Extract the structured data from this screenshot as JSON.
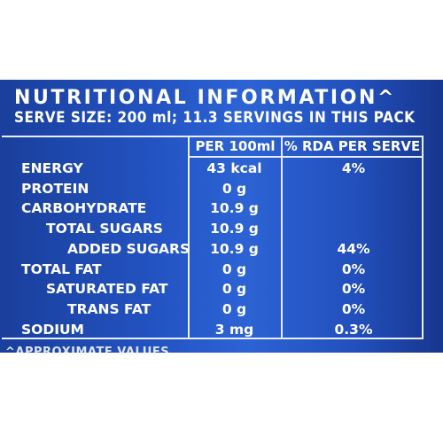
{
  "label": {
    "heading": "NUTRITIONAL INFORMATION^",
    "serve_size": "SERVE SIZE: 200 ml; 11.3 SERVINGS IN THIS PACK",
    "columns": {
      "per_100ml": "PER 100ml",
      "rda_per_serve": "% RDA PER SERVE"
    },
    "rows": [
      {
        "name": "ENERGY",
        "per_100ml": "43 kcal",
        "rda": "4%",
        "indent": 0
      },
      {
        "name": "PROTEIN",
        "per_100ml": "0 g",
        "rda": "",
        "indent": 0
      },
      {
        "name": "CARBOHYDRATE",
        "per_100ml": "10.9 g",
        "rda": "",
        "indent": 0
      },
      {
        "name": "TOTAL SUGARS",
        "per_100ml": "10.9 g",
        "rda": "",
        "indent": 1
      },
      {
        "name": "ADDED SUGARS",
        "per_100ml": "10.9 g",
        "rda": "44%",
        "indent": 2
      },
      {
        "name": "TOTAL FAT",
        "per_100ml": "0 g",
        "rda": "0%",
        "indent": 0
      },
      {
        "name": "SATURATED FAT",
        "per_100ml": "0 g",
        "rda": "0%",
        "indent": 1
      },
      {
        "name": "TRANS FAT",
        "per_100ml": "0 g",
        "rda": "0%",
        "indent": 2
      },
      {
        "name": "SODIUM",
        "per_100ml": "3 mg",
        "rda": "0.3%",
        "indent": 0
      }
    ],
    "footnote": "^APPROXIMATE VALUES"
  },
  "colors": {
    "panel_blue": "#2353c2",
    "text": "#ffffff"
  }
}
